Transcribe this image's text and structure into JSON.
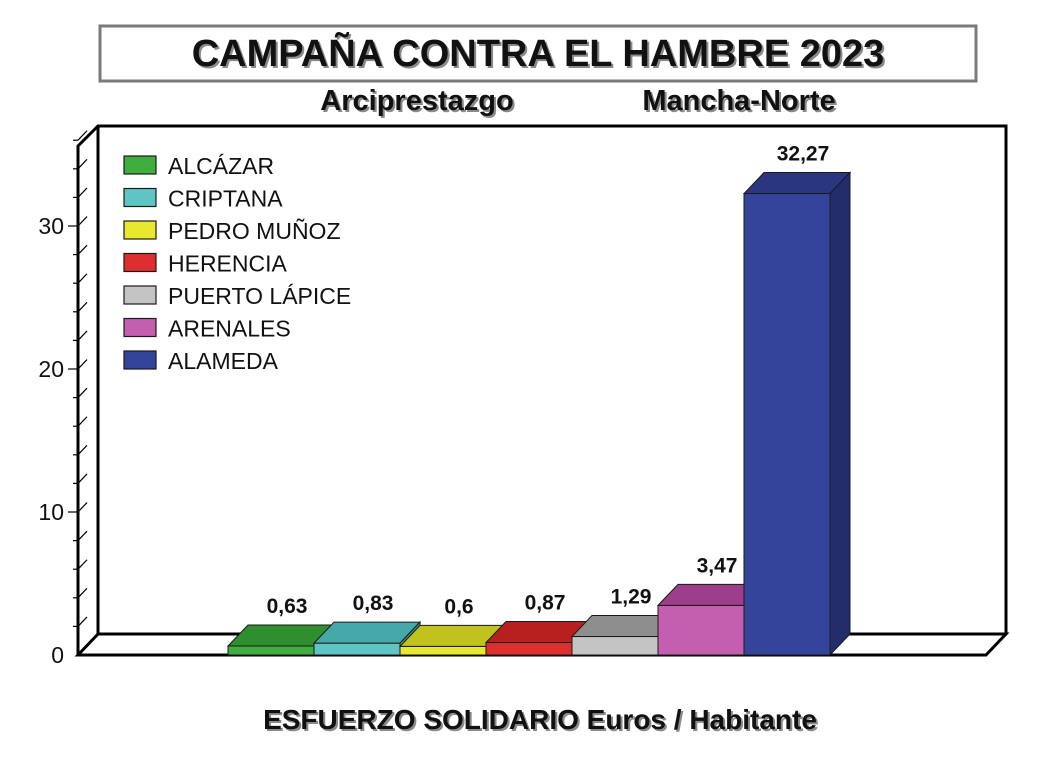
{
  "chart_data": {
    "type": "bar",
    "title": "CAMPAÑA CONTRA EL HAMBRE 2023",
    "subtitle_left": "Arciprestazgo",
    "subtitle_right": "Mancha-Norte",
    "xlabel": "ESFUERZO SOLIDARIO  Euros / Habitante",
    "ylabel": "",
    "ylim": [
      0,
      36
    ],
    "yticks": [
      0,
      10,
      20,
      30
    ],
    "legend_position": "top-left",
    "series": [
      {
        "name": "ALCÁZAR",
        "value": 0.63,
        "label": "0,63",
        "color": "#3fae3f",
        "top": "#2f8f2f",
        "side": "#2a7d2a"
      },
      {
        "name": "CRIPTANA",
        "value": 0.83,
        "label": "0,83",
        "color": "#5ec4c4",
        "top": "#46a8a8",
        "side": "#3a9090"
      },
      {
        "name": "PEDRO MUÑOZ",
        "value": 0.6,
        "label": "0,6",
        "color": "#e8e82e",
        "top": "#c2c21e",
        "side": "#a8a818"
      },
      {
        "name": "HERENCIA",
        "value": 0.87,
        "label": "0,87",
        "color": "#dd2f2f",
        "top": "#b82020",
        "side": "#9e1a1a"
      },
      {
        "name": "PUERTO LÁPICE",
        "value": 1.29,
        "label": "1,29",
        "color": "#c4c4c4",
        "top": "#8e8e8e",
        "side": "#7c7c7c"
      },
      {
        "name": "ARENALES",
        "value": 3.47,
        "label": "3,47",
        "color": "#c45fb0",
        "top": "#9c3e8a",
        "side": "#86347a"
      },
      {
        "name": "ALAMEDA",
        "value": 32.27,
        "label": "32,27",
        "color": "#34449a",
        "top": "#2a3680",
        "side": "#232d6c"
      }
    ]
  }
}
